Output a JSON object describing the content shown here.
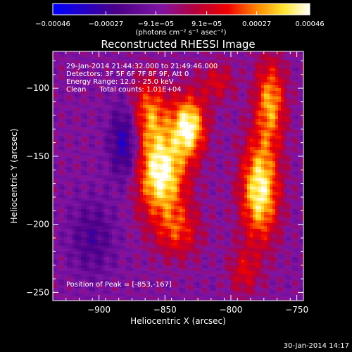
{
  "chart_data": {
    "type": "heatmap",
    "title": "Reconstructed RHESSI Image",
    "xlabel": "Heliocentric X (arcsec)",
    "ylabel": "Heliocentric Y (arcsec)",
    "xlim": [
      -935,
      -745
    ],
    "ylim": [
      -256,
      -73
    ],
    "x_ticks": [
      -900,
      -850,
      -800,
      -750
    ],
    "x_tick_labels": [
      "−900",
      "−850",
      "−800",
      "−750"
    ],
    "y_ticks": [
      -100,
      -150,
      -200,
      -250
    ],
    "y_tick_labels": [
      "−100",
      "−150",
      "−200",
      "−250"
    ],
    "colorbar": {
      "min": -0.00046,
      "max": 0.00046,
      "tick_labels": [
        "−0.00046",
        "−0.00027",
        "−9.1e−05",
        "9.1e−05",
        "0.00027",
        "0.00046"
      ],
      "tick_values": [
        -0.00046,
        -0.00027,
        -9.1e-05,
        9.1e-05,
        0.00027,
        0.00046
      ],
      "units_label": "(photons cm⁻² s⁻¹ asec⁻²)"
    },
    "annotations": [
      "29-Jan-2014 21:44:32.000 to 21:49:46.000",
      "Detectors: 3F 5F 6F 7F 8F 9F, Att 0",
      "Energy Range: 12.0 - 25.0 keV",
      "Clean      Total counts: 1.01E+04"
    ],
    "peak_label": "Position of Peak = [-853,-167]",
    "peak": [
      -853,
      -167
    ],
    "sources": [
      {
        "x": -853,
        "y": -163,
        "amp": 1.0,
        "sx": 13,
        "sy": 22
      },
      {
        "x": -832,
        "y": -128,
        "amp": 0.95,
        "sx": 9,
        "sy": 16
      },
      {
        "x": -862,
        "y": -118,
        "amp": 0.6,
        "sx": 10,
        "sy": 18
      },
      {
        "x": -778,
        "y": -175,
        "amp": 0.95,
        "sx": 10,
        "sy": 26
      },
      {
        "x": -770,
        "y": -110,
        "amp": 0.7,
        "sx": 8,
        "sy": 22
      },
      {
        "x": -840,
        "y": -205,
        "amp": 0.45,
        "sx": 12,
        "sy": 14
      },
      {
        "x": -810,
        "y": -95,
        "amp": 0.35,
        "sx": 9,
        "sy": 10
      },
      {
        "x": -790,
        "y": -235,
        "amp": 0.35,
        "sx": 8,
        "sy": 12
      },
      {
        "x": -880,
        "y": -140,
        "amp": -0.55,
        "sx": 8,
        "sy": 20
      },
      {
        "x": -905,
        "y": -210,
        "amp": -0.3,
        "sx": 12,
        "sy": 20
      }
    ]
  },
  "footer": {
    "timestamp": "30-Jan-2014 14:17"
  },
  "colors": {
    "background": "#000000",
    "text": "#ffffff",
    "colormap": [
      "#0000ff",
      "#4b0087",
      "#7f14a5",
      "#b4003c",
      "#f00000",
      "#ff8c00",
      "#ffe632",
      "#ffffff"
    ]
  }
}
